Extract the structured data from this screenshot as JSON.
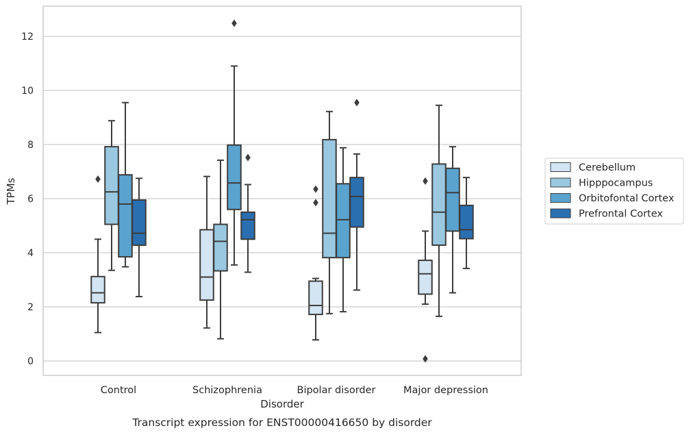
{
  "chart_data": {
    "type": "box",
    "title": "",
    "caption": "Transcript expression for ENST00000416650 by disorder",
    "xlabel": "Disorder",
    "ylabel": "TPMs",
    "ylim": [
      -0.5,
      13.1
    ],
    "yticks": [
      0,
      2,
      4,
      6,
      8,
      10,
      12
    ],
    "grid": "horizontal",
    "legend_position": "right",
    "categories": [
      "Control",
      "Schizophrenia",
      "Bipolar disorder",
      "Major depression"
    ],
    "series": [
      {
        "name": "Cerebellum",
        "color": "#d3e4f3",
        "boxes": [
          {
            "whislo": 1.05,
            "q1": 2.15,
            "med": 2.52,
            "q3": 3.12,
            "whishi": 4.5,
            "fliers": [
              6.72
            ]
          },
          {
            "whislo": 1.22,
            "q1": 2.25,
            "med": 3.1,
            "q3": 4.85,
            "whishi": 6.82,
            "fliers": []
          },
          {
            "whislo": 0.78,
            "q1": 1.72,
            "med": 2.05,
            "q3": 2.95,
            "whishi": 3.05,
            "fliers": [
              5.85,
              6.35
            ]
          },
          {
            "whislo": 2.1,
            "q1": 2.47,
            "med": 3.22,
            "q3": 3.72,
            "whishi": 4.8,
            "fliers": [
              0.08,
              6.65
            ]
          }
        ]
      },
      {
        "name": "Hipppocampus",
        "color": "#9ac8e0",
        "boxes": [
          {
            "whislo": 3.35,
            "q1": 5.05,
            "med": 6.25,
            "q3": 7.92,
            "whishi": 8.88,
            "fliers": []
          },
          {
            "whislo": 0.82,
            "q1": 3.33,
            "med": 4.42,
            "q3": 5.05,
            "whishi": 7.42,
            "fliers": []
          },
          {
            "whislo": 1.75,
            "q1": 3.82,
            "med": 4.72,
            "q3": 8.18,
            "whishi": 9.22,
            "fliers": []
          },
          {
            "whislo": 1.65,
            "q1": 4.28,
            "med": 5.5,
            "q3": 7.28,
            "whishi": 9.45,
            "fliers": []
          }
        ]
      },
      {
        "name": "Orbitofontal Cortex",
        "color": "#5ba3cf",
        "boxes": [
          {
            "whislo": 3.48,
            "q1": 3.85,
            "med": 5.8,
            "q3": 6.88,
            "whishi": 9.55,
            "fliers": []
          },
          {
            "whislo": 3.55,
            "q1": 5.6,
            "med": 6.58,
            "q3": 7.98,
            "whishi": 10.9,
            "fliers": [
              12.48
            ]
          },
          {
            "whislo": 1.82,
            "q1": 3.82,
            "med": 5.22,
            "q3": 6.55,
            "whishi": 7.88,
            "fliers": []
          },
          {
            "whislo": 2.52,
            "q1": 4.8,
            "med": 6.22,
            "q3": 7.12,
            "whishi": 7.92,
            "fliers": []
          }
        ]
      },
      {
        "name": "Prefrontal Cortex",
        "color": "#2a6fb0",
        "boxes": [
          {
            "whislo": 2.38,
            "q1": 4.28,
            "med": 4.72,
            "q3": 5.95,
            "whishi": 6.75,
            "fliers": []
          },
          {
            "whislo": 3.28,
            "q1": 4.5,
            "med": 5.22,
            "q3": 5.5,
            "whishi": 6.52,
            "fliers": [
              7.52
            ]
          },
          {
            "whislo": 2.62,
            "q1": 4.95,
            "med": 6.08,
            "q3": 6.78,
            "whishi": 7.65,
            "fliers": [
              9.55
            ]
          },
          {
            "whislo": 3.42,
            "q1": 4.52,
            "med": 4.85,
            "q3": 5.75,
            "whishi": 6.78,
            "fliers": []
          }
        ]
      }
    ]
  }
}
